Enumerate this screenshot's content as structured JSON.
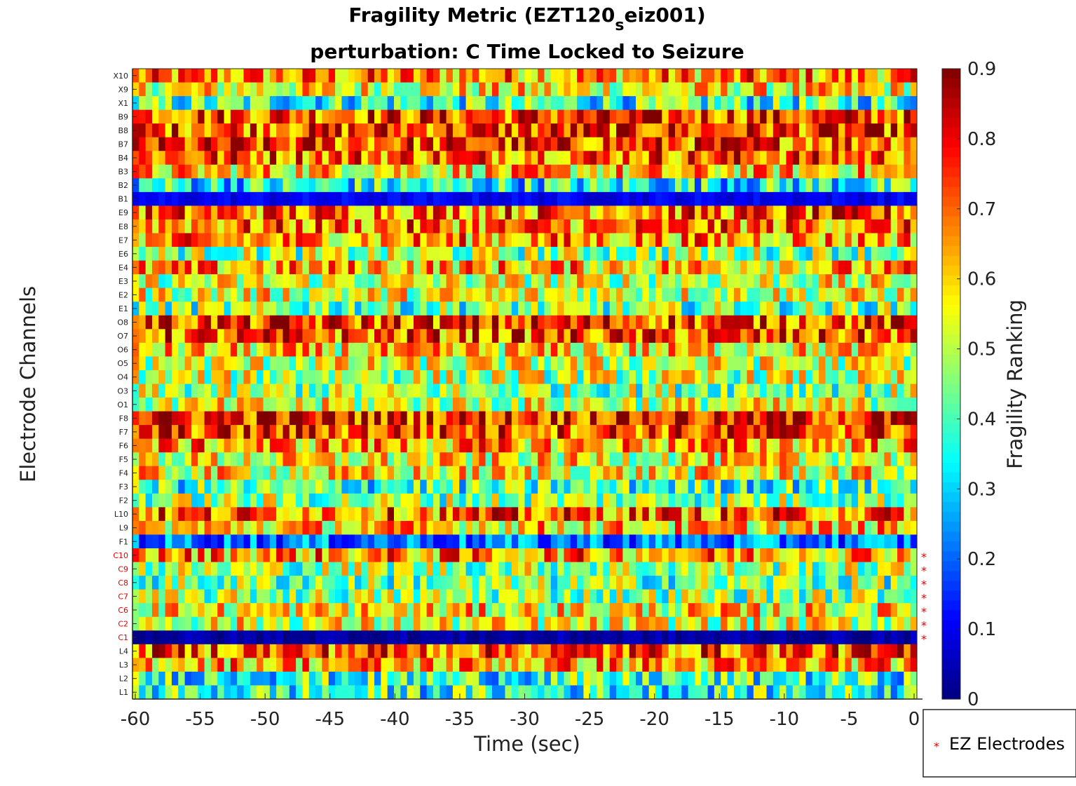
{
  "chart_data": {
    "type": "heatmap",
    "title_line1_prefix": "Fragility Metric (EZT120",
    "title_line1_sub": "s",
    "title_line1_suffix": "eiz001)",
    "title_line2": "perturbation: C Time Locked to Seizure",
    "xlabel": "Time (sec)",
    "ylabel": "Electrode Channels",
    "colorbar_label": "Fragility Ranking",
    "colormap": "jet",
    "xlim": [
      -60,
      0
    ],
    "clim": [
      0,
      0.9
    ],
    "xticks": [
      -60,
      -55,
      -50,
      -45,
      -40,
      -35,
      -30,
      -25,
      -20,
      -15,
      -10,
      -5,
      0
    ],
    "colorbar_ticks": [
      "0",
      "0.1",
      "0.2",
      "0.3",
      "0.4",
      "0.5",
      "0.6",
      "0.7",
      "0.8",
      "0.9"
    ],
    "channels_top_to_bottom": [
      "X10",
      "X9",
      "X1",
      "B9",
      "B8",
      "B7",
      "B4",
      "B3",
      "B2",
      "B1",
      "E9",
      "E8",
      "E7",
      "E6",
      "E4",
      "E3",
      "E2",
      "E1",
      "O8",
      "O7",
      "O6",
      "O5",
      "O4",
      "O3",
      "O1",
      "F8",
      "F7",
      "F6",
      "F5",
      "F4",
      "F3",
      "F2",
      "L10",
      "L9",
      "F1",
      "C10",
      "C9",
      "C8",
      "C7",
      "C6",
      "C2",
      "C1",
      "L4",
      "L3",
      "L2",
      "L1"
    ],
    "ez_channels": [
      "C10",
      "C9",
      "C8",
      "C7",
      "C6",
      "C2",
      "C1"
    ],
    "ez_marker": "*",
    "legend": {
      "marker": "*",
      "label": "EZ Electrodes",
      "color": "#e00000",
      "position": "bottom-right outside"
    },
    "num_time_windows": 120,
    "channel_mean_fragility": {
      "X10": 0.66,
      "X9": 0.56,
      "X1": 0.38,
      "B9": 0.74,
      "B8": 0.74,
      "B7": 0.73,
      "B4": 0.72,
      "B3": 0.6,
      "B2": 0.35,
      "B1": 0.1,
      "E9": 0.7,
      "E8": 0.68,
      "E7": 0.65,
      "E6": 0.47,
      "E4": 0.63,
      "E3": 0.52,
      "E2": 0.54,
      "E1": 0.44,
      "O8": 0.74,
      "O7": 0.71,
      "O6": 0.58,
      "O5": 0.52,
      "O4": 0.5,
      "O3": 0.47,
      "O1": 0.52,
      "F8": 0.78,
      "F7": 0.74,
      "F6": 0.64,
      "F5": 0.55,
      "F4": 0.56,
      "F3": 0.39,
      "F2": 0.47,
      "L10": 0.7,
      "L9": 0.6,
      "F1": 0.22,
      "C10": 0.66,
      "C9": 0.48,
      "C8": 0.44,
      "C7": 0.47,
      "C6": 0.57,
      "C2": 0.53,
      "C1": 0.03,
      "L4": 0.72,
      "L3": 0.64,
      "L2": 0.38,
      "L1": 0.38
    },
    "grid": false
  }
}
